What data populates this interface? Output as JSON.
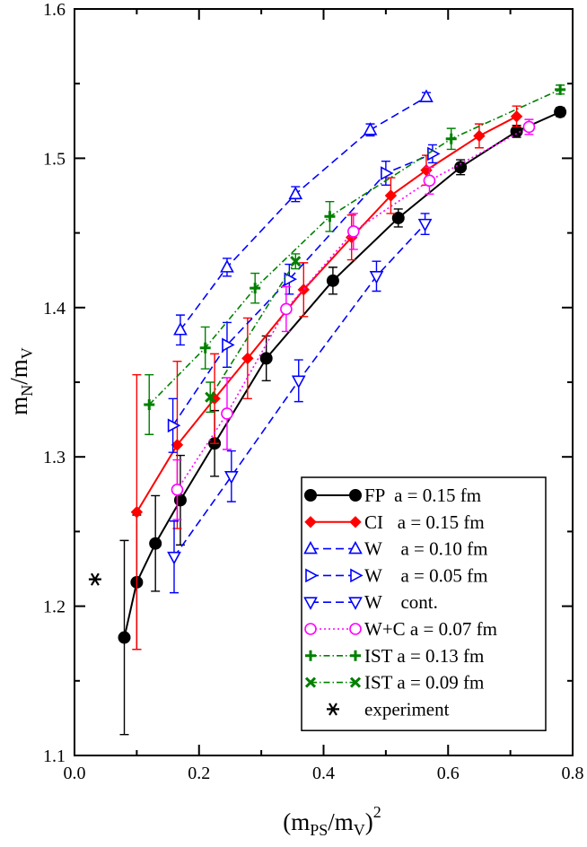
{
  "chart_data": {
    "type": "scatter",
    "title": "",
    "xlabel": {
      "main": "(m",
      "sub1": "PS",
      "mid": "/m",
      "sub2": "V",
      "close": ")",
      "sup": "2"
    },
    "ylabel": {
      "main": "m",
      "sub1": "N",
      "mid": "/m",
      "sub2": "V"
    },
    "xlim": [
      0.0,
      0.8
    ],
    "ylim": [
      1.1,
      1.6
    ],
    "xticks": [
      "0.0",
      "0.2",
      "0.4",
      "0.6",
      "0.8"
    ],
    "yticks": [
      "1.1",
      "1.2",
      "1.3",
      "1.4",
      "1.5",
      "1.6"
    ],
    "grid": false,
    "legend_position": "bottom-right",
    "series": [
      {
        "name": "FP  a = 0.15 fm",
        "color": "#000000",
        "marker": "filled-circle",
        "line": "solid",
        "points": [
          {
            "x": 0.08,
            "y": 1.179,
            "ey": 0.065
          },
          {
            "x": 0.1,
            "y": 1.216,
            "ey": 0.045
          },
          {
            "x": 0.13,
            "y": 1.242,
            "ey": 0.032
          },
          {
            "x": 0.17,
            "y": 1.271,
            "ey": 0.03
          },
          {
            "x": 0.225,
            "y": 1.309,
            "ey": 0.022
          },
          {
            "x": 0.308,
            "y": 1.366,
            "ey": 0.015
          },
          {
            "x": 0.415,
            "y": 1.418,
            "ey": 0.009
          },
          {
            "x": 0.52,
            "y": 1.46,
            "ey": 0.006
          },
          {
            "x": 0.62,
            "y": 1.494,
            "ey": 0.005
          },
          {
            "x": 0.71,
            "y": 1.518,
            "ey": 0.004
          },
          {
            "x": 0.78,
            "y": 1.531,
            "ey": 0.003
          }
        ]
      },
      {
        "name": "CI   a = 0.15 fm",
        "color": "#ff0000",
        "marker": "filled-diamond",
        "line": "solid",
        "points": [
          {
            "x": 0.1,
            "y": 1.263,
            "ey": 0.092
          },
          {
            "x": 0.165,
            "y": 1.308,
            "ey": 0.056
          },
          {
            "x": 0.225,
            "y": 1.339,
            "ey": 0.03
          },
          {
            "x": 0.278,
            "y": 1.366,
            "ey": 0.027
          },
          {
            "x": 0.368,
            "y": 1.412,
            "ey": 0.018
          },
          {
            "x": 0.445,
            "y": 1.447,
            "ey": 0.015
          },
          {
            "x": 0.508,
            "y": 1.475,
            "ey": 0.012
          },
          {
            "x": 0.565,
            "y": 1.492,
            "ey": 0.01
          },
          {
            "x": 0.65,
            "y": 1.515,
            "ey": 0.008
          },
          {
            "x": 0.71,
            "y": 1.528,
            "ey": 0.007
          }
        ]
      },
      {
        "name": "W    a = 0.10 fm",
        "color": "#0000ff",
        "marker": "open-triangle-up",
        "line": "dashed",
        "points": [
          {
            "x": 0.17,
            "y": 1.385,
            "ey": 0.01
          },
          {
            "x": 0.245,
            "y": 1.427,
            "ey": 0.006
          },
          {
            "x": 0.355,
            "y": 1.476,
            "ey": 0.005
          },
          {
            "x": 0.475,
            "y": 1.519,
            "ey": 0.004
          },
          {
            "x": 0.565,
            "y": 1.541,
            "ey": 0.003
          }
        ]
      },
      {
        "name": "W    a = 0.05 fm",
        "color": "#0000ff",
        "marker": "open-triangle-right",
        "line": "dashed",
        "points": [
          {
            "x": 0.158,
            "y": 1.321,
            "ey": 0.018
          },
          {
            "x": 0.245,
            "y": 1.375,
            "ey": 0.015
          },
          {
            "x": 0.345,
            "y": 1.419,
            "ey": 0.01
          },
          {
            "x": 0.5,
            "y": 1.49,
            "ey": 0.008
          },
          {
            "x": 0.575,
            "y": 1.503,
            "ey": 0.006
          }
        ]
      },
      {
        "name": "W    cont.",
        "color": "#0000ff",
        "marker": "open-triangle-down",
        "line": "dashed",
        "points": [
          {
            "x": 0.16,
            "y": 1.233,
            "ey": 0.024
          },
          {
            "x": 0.252,
            "y": 1.287,
            "ey": 0.017
          },
          {
            "x": 0.36,
            "y": 1.351,
            "ey": 0.014
          },
          {
            "x": 0.485,
            "y": 1.421,
            "ey": 0.01
          },
          {
            "x": 0.563,
            "y": 1.456,
            "ey": 0.007
          }
        ]
      },
      {
        "name": "W+C a = 0.07 fm",
        "color": "#ff00ff",
        "marker": "open-circle",
        "line": "dotted",
        "points": [
          {
            "x": 0.165,
            "y": 1.278,
            "ey": 0.02
          },
          {
            "x": 0.245,
            "y": 1.329,
            "ey": 0.024
          },
          {
            "x": 0.34,
            "y": 1.399,
            "ey": 0.015
          },
          {
            "x": 0.448,
            "y": 1.451,
            "ey": 0.012
          },
          {
            "x": 0.57,
            "y": 1.485,
            "ey": 0.009
          },
          {
            "x": 0.73,
            "y": 1.521,
            "ey": 0.005
          }
        ]
      },
      {
        "name": "IST a = 0.13 fm",
        "color": "#008000",
        "marker": "plus",
        "line": "dash-dot",
        "points": [
          {
            "x": 0.12,
            "y": 1.335,
            "ey": 0.02
          },
          {
            "x": 0.21,
            "y": 1.373,
            "ey": 0.014
          },
          {
            "x": 0.29,
            "y": 1.413,
            "ey": 0.01
          },
          {
            "x": 0.41,
            "y": 1.461,
            "ey": 0.01
          },
          {
            "x": 0.605,
            "y": 1.513,
            "ey": 0.007
          },
          {
            "x": 0.78,
            "y": 1.546,
            "ey": 0.003
          }
        ]
      },
      {
        "name": "IST a = 0.09 fm",
        "color": "#008000",
        "marker": "cross",
        "line": "dash-dot",
        "points": [
          {
            "x": 0.218,
            "y": 1.34,
            "ey": 0.01
          },
          {
            "x": 0.355,
            "y": 1.431,
            "ey": 0.005
          }
        ]
      },
      {
        "name": "experiment",
        "color": "#000000",
        "marker": "asterisk",
        "line": "none",
        "points": [
          {
            "x": 0.033,
            "y": 1.218,
            "ey": 0
          }
        ]
      }
    ]
  }
}
